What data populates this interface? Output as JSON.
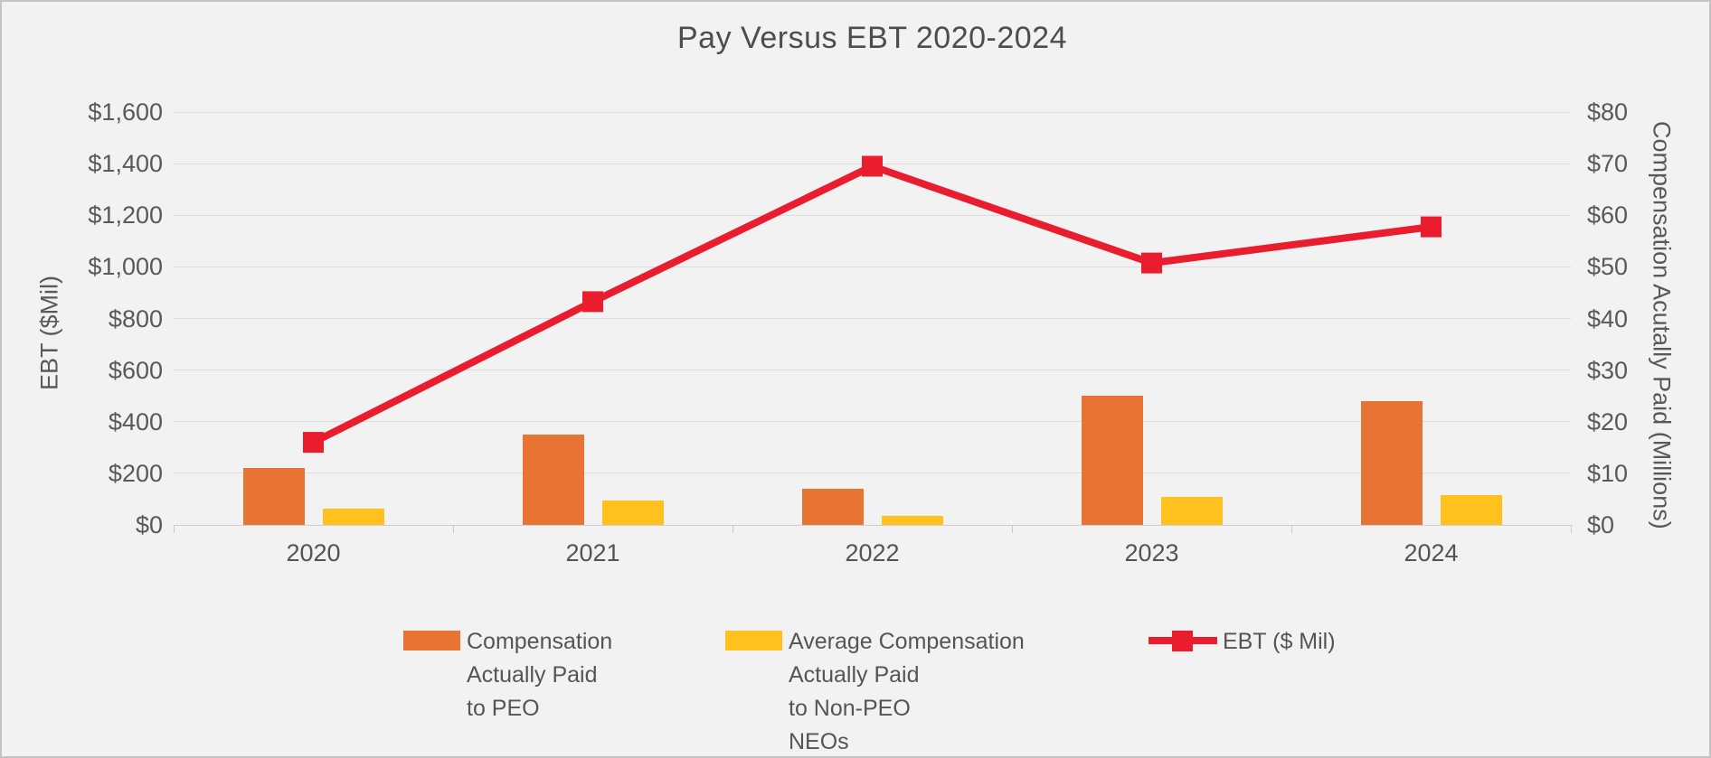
{
  "title": "Pay Versus EBT 2020-2024",
  "chart_data": {
    "type": "combo-bar-line",
    "categories": [
      "2020",
      "2021",
      "2022",
      "2023",
      "2024"
    ],
    "series": [
      {
        "name": "Compensation Actually Paid to PEO",
        "chart": "bar",
        "axis": "right",
        "color": "#E87433",
        "values": [
          11.0,
          17.5,
          7.0,
          25.0,
          24.0
        ]
      },
      {
        "name": "Average Compensation Actually Paid to Non-PEO NEOs",
        "chart": "bar",
        "axis": "right",
        "color": "#FFC11E",
        "values": [
          3.2,
          4.7,
          1.8,
          5.4,
          5.7
        ]
      },
      {
        "name": "EBT ($ Mil)",
        "chart": "line",
        "axis": "left",
        "color": "#E91D2D",
        "values": [
          320,
          865,
          1390,
          1015,
          1155
        ]
      }
    ],
    "left_axis": {
      "title": "EBT ($Mil)",
      "min": 0,
      "max": 1600,
      "step": 200,
      "tick_labels": [
        "$0",
        "$200",
        "$400",
        "$600",
        "$800",
        "$1,000",
        "$1,200",
        "$1,400",
        "$1,600"
      ]
    },
    "right_axis": {
      "title": "Compensation Acutally Paid (Millions)",
      "min": 0,
      "max": 80,
      "step": 10,
      "tick_labels": [
        "$0",
        "$10",
        "$20",
        "$30",
        "$40",
        "$50",
        "$60",
        "$70",
        "$80"
      ]
    },
    "grid": true,
    "legend_position": "bottom"
  },
  "legend": {
    "items": [
      {
        "swatch": "bar",
        "color": "#E87433",
        "lines": [
          "Compensation",
          "Actually Paid",
          "to PEO"
        ]
      },
      {
        "swatch": "bar",
        "color": "#FFC11E",
        "lines": [
          "Average Compensation",
          "Actually Paid",
          "to Non-PEO",
          "NEOs"
        ]
      },
      {
        "swatch": "line",
        "color": "#E91D2D",
        "lines": [
          "EBT ($ Mil)"
        ]
      }
    ]
  },
  "colors": {
    "background": "#F2F2F2",
    "gridline": "#DCDCDC",
    "axis_line": "#CFCFCF",
    "text": "#595959",
    "title": "#4D4D4D"
  }
}
